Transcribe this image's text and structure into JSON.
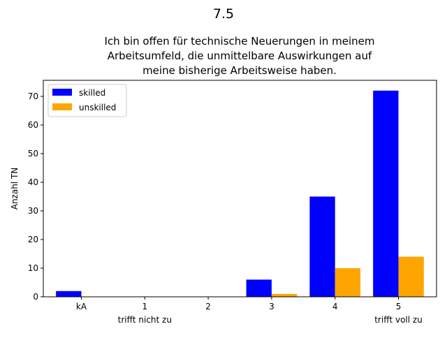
{
  "chart_data": {
    "type": "bar",
    "suptitle": "7.5",
    "title_lines": [
      "Ich bin offen für technische Neuerungen in meinem",
      "Arbeitsumfeld, die unmittelbare Auswirkungen auf",
      "meine bisherige Arbeitsweise haben."
    ],
    "xlabel": "",
    "ylabel": "Anzahl TN",
    "categories": [
      "kA",
      "1",
      "2",
      "3",
      "4",
      "5"
    ],
    "category_sublabels": [
      "",
      "trifft nicht zu",
      "",
      "",
      "",
      "trifft voll zu"
    ],
    "series": [
      {
        "name": "skilled",
        "color": "#0000ff",
        "values": [
          2,
          0,
          0,
          6,
          35,
          72
        ]
      },
      {
        "name": "unskilled",
        "color": "#ffa500",
        "values": [
          0,
          0,
          0,
          1,
          10,
          14
        ]
      }
    ],
    "ylim": [
      0,
      75.6
    ],
    "yticks": [
      0,
      10,
      20,
      30,
      40,
      50,
      60,
      70
    ],
    "grid": false,
    "legend_position": "upper-left"
  }
}
